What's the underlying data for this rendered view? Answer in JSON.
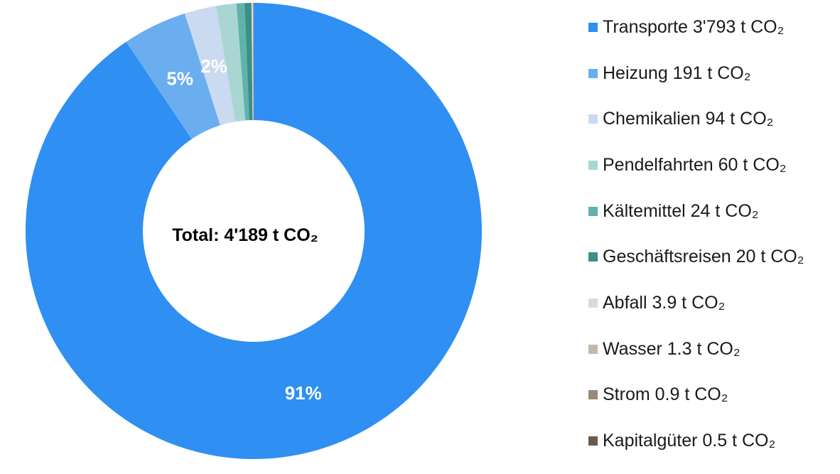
{
  "chart_data": {
    "type": "pie",
    "variant": "donut",
    "total_label": "Total: 4'189 t CO₂",
    "slices": [
      {
        "name": "Transporte",
        "legend": "Transporte 3'793 t CO₂",
        "value": 3793,
        "color": "#2f8ff2",
        "label": "91%"
      },
      {
        "name": "Heizung",
        "legend": "Heizung 191 t CO₂",
        "value": 191,
        "color": "#6aaef0",
        "label": "5%"
      },
      {
        "name": "Chemikalien",
        "legend": "Chemikalien 94 t CO₂",
        "value": 94,
        "color": "#c9daf1",
        "label": "2%"
      },
      {
        "name": "Pendelfahrten",
        "legend": "Pendelfahrten 60 t CO₂",
        "value": 60,
        "color": "#a9d6d3",
        "label": ""
      },
      {
        "name": "Kältemittel",
        "legend": "Kältemittel 24 t CO₂",
        "value": 24,
        "color": "#5fb3ab",
        "label": ""
      },
      {
        "name": "Geschäftsreisen",
        "legend": "Geschäftsreisen 20 t CO₂",
        "value": 20,
        "color": "#3a8f87",
        "label": ""
      },
      {
        "name": "Abfall",
        "legend": "Abfall 3.9 t CO₂",
        "value": 3.9,
        "color": "#dedad2",
        "label": ""
      },
      {
        "name": "Wasser",
        "legend": "Wasser 1.3 t CO₂",
        "value": 1.3,
        "color": "#c2b8ad",
        "label": ""
      },
      {
        "name": "Strom",
        "legend": "Strom 0.9 t CO₂",
        "value": 0.9,
        "color": "#998a78",
        "label": ""
      },
      {
        "name": "Kapitalgüter",
        "legend": "Kapitalgüter 0.5 t CO₂",
        "value": 0.5,
        "color": "#6b5a4c",
        "label": ""
      }
    ],
    "legend_position": "right"
  }
}
